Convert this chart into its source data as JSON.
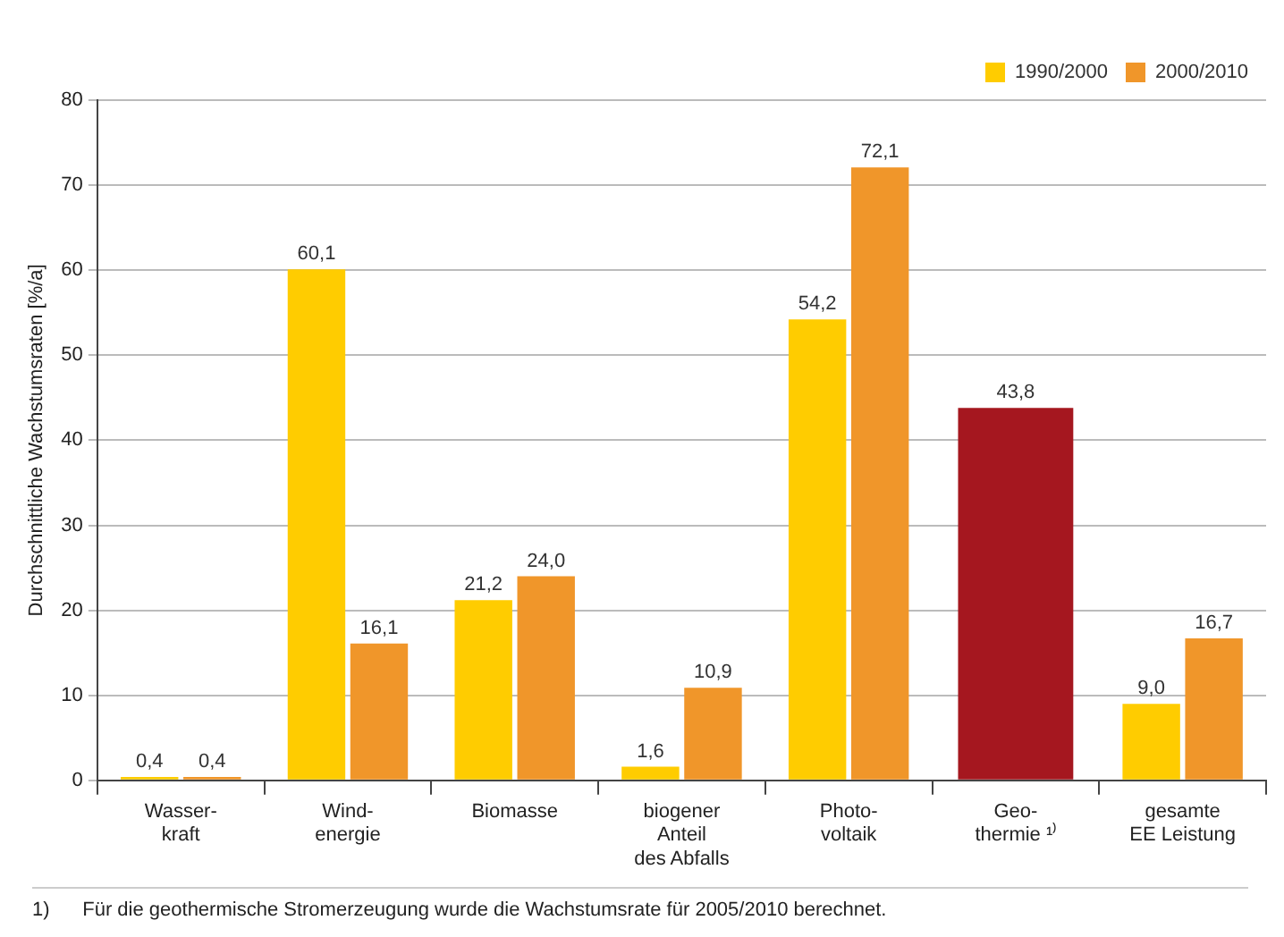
{
  "chart_data": {
    "type": "bar",
    "ylabel": "Durchschnittliche Wachstumsraten [%/a]",
    "categories": [
      "Wasser-\nkraft",
      "Wind-\nenergie",
      "Biomasse",
      "biogener\nAnteil\ndes Abfalls",
      "Photo-\nvoltaik",
      "Geo-\nthermie ¹⁾",
      "gesamte\nEE Leistung"
    ],
    "series": [
      {
        "name": "1990/2000",
        "color": "#ffcc00",
        "values": [
          0.4,
          60.1,
          21.2,
          1.6,
          54.2,
          null,
          9.0
        ],
        "value_labels": [
          "0,4",
          "60,1",
          "21,2",
          "1,6",
          "54,2",
          null,
          "9,0"
        ]
      },
      {
        "name": "2000/2010",
        "color": "#f0962a",
        "colors": [
          "#f0962a",
          "#f0962a",
          "#f0962a",
          "#f0962a",
          "#f0962a",
          "#a5171f",
          "#f0962a"
        ],
        "values": [
          0.4,
          16.1,
          24.0,
          10.9,
          72.1,
          43.8,
          16.7
        ],
        "value_labels": [
          "0,4",
          "16,1",
          "24,0",
          "10,9",
          "72,1",
          "43,8",
          "16,7"
        ]
      }
    ],
    "ylim": [
      0,
      80
    ],
    "yticks": [
      0,
      10,
      20,
      30,
      40,
      50,
      60,
      70,
      80
    ],
    "grid": "y",
    "legend": "top right",
    "annotations": [
      "1)      Für die geothermische Stromerzeugung wurde die Wachstumsrate für 2005/2010 berechnet."
    ]
  }
}
